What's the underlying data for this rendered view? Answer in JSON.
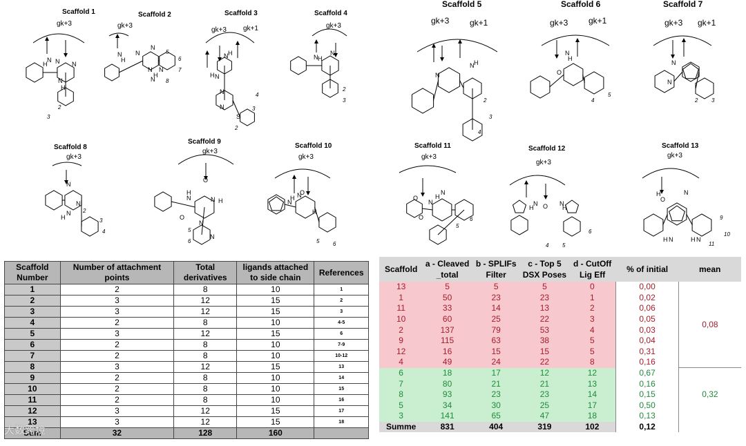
{
  "scaffolds": [
    {
      "title": "Scaffold 1",
      "gk": [
        "gk+3"
      ],
      "numbers": [
        "2",
        "3"
      ],
      "labels": [
        "H",
        "N",
        "N",
        "N",
        "H",
        "N"
      ]
    },
    {
      "title": "Scaffold 2",
      "gk": [
        "gk+3"
      ],
      "numbers": [
        "5",
        "6",
        "7",
        "8"
      ],
      "labels": [
        "H",
        "N",
        "N",
        "N",
        "N",
        "N",
        "H",
        "N"
      ]
    },
    {
      "title": "Scaffold 3",
      "gk": [
        "gk+3",
        "gk+1"
      ],
      "numbers": [
        "2",
        "3",
        "4"
      ],
      "labels": [
        "N",
        "H",
        "N",
        "H",
        "N",
        "N",
        "S"
      ]
    },
    {
      "title": "Scaffold 4",
      "gk": [
        "gk+3"
      ],
      "numbers": [
        "2",
        "3"
      ],
      "labels": [
        "H",
        "N",
        "N"
      ]
    },
    {
      "title": "Scaffold 5",
      "gk": [
        "gk+3",
        "gk+1"
      ],
      "numbers": [
        "2",
        "3",
        "4"
      ],
      "labels": [
        "N",
        "N",
        "H"
      ]
    },
    {
      "title": "Scaffold 6",
      "gk": [
        "gk+3",
        "gk+1"
      ],
      "numbers": [
        "4",
        "5"
      ],
      "labels": [
        "H",
        "N",
        "O"
      ]
    },
    {
      "title": "Scaffold 7",
      "gk": [
        "gk+3",
        "gk+1"
      ],
      "numbers": [
        "2",
        "3"
      ],
      "labels": [
        "N",
        "N"
      ]
    },
    {
      "title": "Scaffold 8",
      "gk": [
        "gk+3"
      ],
      "numbers": [
        "2",
        "3",
        "4"
      ],
      "labels": [
        "N",
        "N",
        "H",
        "N"
      ]
    },
    {
      "title": "Scaffold 9",
      "gk": [
        "gk+3"
      ],
      "numbers": [
        "5",
        "6"
      ],
      "labels": [
        "O",
        "O",
        "N",
        "H",
        "H",
        "N",
        "N",
        "N"
      ]
    },
    {
      "title": "Scaffold 10",
      "gk": [
        "gk+3"
      ],
      "numbers": [
        "5",
        "6"
      ],
      "labels": [
        "N",
        "H",
        "O",
        "N",
        "H"
      ]
    },
    {
      "title": "Scaffold 11",
      "gk": [
        "gk+3"
      ],
      "numbers": [
        "5",
        "6"
      ],
      "labels": [
        "O",
        "H",
        "N",
        "N",
        "O"
      ]
    },
    {
      "title": "Scaffold 12",
      "gk": [
        "gk+3"
      ],
      "numbers": [
        "4",
        "5",
        "6"
      ],
      "labels": [
        "O",
        "H",
        "N",
        "H",
        "N"
      ]
    },
    {
      "title": "Scaffold 13",
      "gk": [
        "gk+3"
      ],
      "numbers": [
        "9",
        "10",
        "11"
      ],
      "labels": [
        "O",
        "H",
        "N",
        "H",
        "N",
        "H",
        "N"
      ]
    }
  ],
  "left_table": {
    "headers": [
      "Scaffold Number",
      "Number of attachment points",
      "Total derivatives",
      "ligands attached to side chain",
      "References"
    ],
    "rows": [
      [
        "1",
        "2",
        "8",
        "10",
        "1"
      ],
      [
        "2",
        "3",
        "12",
        "15",
        "2"
      ],
      [
        "3",
        "3",
        "12",
        "15",
        "3"
      ],
      [
        "4",
        "2",
        "8",
        "10",
        "4-5"
      ],
      [
        "5",
        "3",
        "12",
        "15",
        "6"
      ],
      [
        "6",
        "2",
        "8",
        "10",
        "7-9"
      ],
      [
        "7",
        "2",
        "8",
        "10",
        "10-12"
      ],
      [
        "8",
        "3",
        "12",
        "15",
        "13"
      ],
      [
        "9",
        "2",
        "8",
        "10",
        "14"
      ],
      [
        "10",
        "2",
        "8",
        "10",
        "15"
      ],
      [
        "11",
        "2",
        "8",
        "10",
        "16"
      ],
      [
        "12",
        "3",
        "12",
        "15",
        "17"
      ],
      [
        "13",
        "3",
        "12",
        "15",
        "18"
      ]
    ],
    "sum": [
      "Sum",
      "32",
      "128",
      "160",
      ""
    ]
  },
  "right_table": {
    "headers": [
      "Scaffold",
      "a - Cleaved _total",
      "b - SPLIFs Filter",
      "c - Top 5 DSX Poses",
      "d - CutOff Lig Eff",
      "% of initial",
      "mean"
    ],
    "pink_rows": [
      [
        "13",
        "5",
        "5",
        "5",
        "0",
        "0,00"
      ],
      [
        "1",
        "50",
        "23",
        "23",
        "1",
        "0,02"
      ],
      [
        "11",
        "33",
        "14",
        "13",
        "2",
        "0,06"
      ],
      [
        "10",
        "60",
        "25",
        "22",
        "3",
        "0,05"
      ],
      [
        "2",
        "137",
        "79",
        "53",
        "4",
        "0,03"
      ],
      [
        "9",
        "115",
        "63",
        "38",
        "5",
        "0,04"
      ],
      [
        "12",
        "16",
        "15",
        "15",
        "5",
        "0,31"
      ],
      [
        "4",
        "49",
        "24",
        "22",
        "8",
        "0,16"
      ]
    ],
    "pink_mean": "0,08",
    "green_rows": [
      [
        "6",
        "18",
        "17",
        "12",
        "12",
        "0,67"
      ],
      [
        "7",
        "80",
        "21",
        "21",
        "13",
        "0,16"
      ],
      [
        "8",
        "93",
        "23",
        "23",
        "14",
        "0,15"
      ],
      [
        "5",
        "34",
        "30",
        "25",
        "17",
        "0,50"
      ],
      [
        "3",
        "141",
        "65",
        "47",
        "18",
        "0,13"
      ]
    ],
    "green_mean": "0,32",
    "summe": [
      "Summe",
      "831",
      "404",
      "319",
      "102",
      "0,12"
    ]
  },
  "watermark": "大数跨境",
  "colors": {
    "pink_bg": "#f8c8cf",
    "pink_text": "#a51c2a",
    "green_bg": "#c9efd0",
    "green_text": "#1f8a3b",
    "header_gray": "#b7b7b7"
  }
}
